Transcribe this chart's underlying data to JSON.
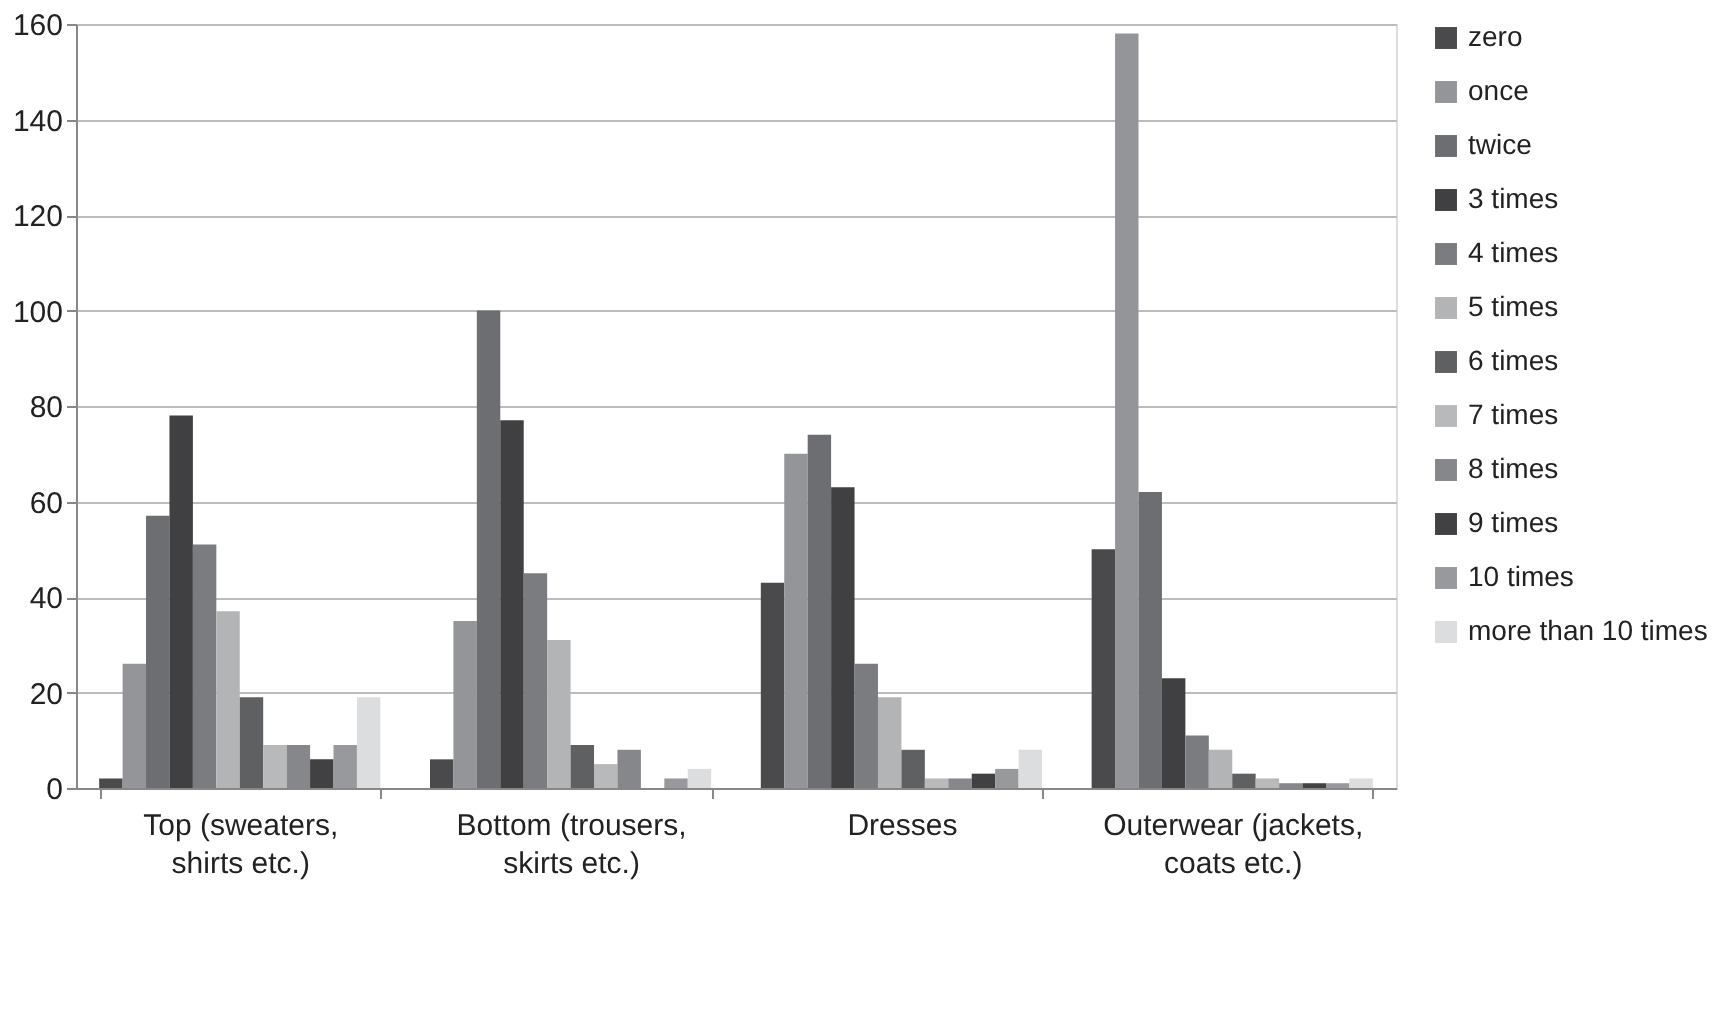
{
  "chart_data": {
    "type": "bar",
    "categories": [
      "Top (sweaters, shirts etc.)",
      "Bottom (trousers, skirts etc.)",
      "Dresses",
      "Outerwear (jackets, coats etc.)"
    ],
    "series": [
      {
        "name": "zero",
        "color": "#4a4a4c",
        "values": [
          2,
          6,
          43,
          50
        ]
      },
      {
        "name": "once",
        "color": "#939598",
        "values": [
          26,
          35,
          70,
          158
        ]
      },
      {
        "name": "twice",
        "color": "#6d6e71",
        "values": [
          57,
          100,
          74,
          62
        ]
      },
      {
        "name": "3 times",
        "color": "#404042",
        "values": [
          78,
          77,
          63,
          23
        ]
      },
      {
        "name": "4 times",
        "color": "#7b7c7f",
        "values": [
          51,
          45,
          26,
          11
        ]
      },
      {
        "name": "5 times",
        "color": "#b3b4b6",
        "values": [
          37,
          31,
          19,
          8
        ]
      },
      {
        "name": "6 times",
        "color": "#5f6062",
        "values": [
          19,
          9,
          8,
          3
        ]
      },
      {
        "name": "7 times",
        "color": "#b8b9bb",
        "values": [
          9,
          5,
          2,
          2
        ]
      },
      {
        "name": "8 times",
        "color": "#86878a",
        "values": [
          9,
          8,
          2,
          1
        ]
      },
      {
        "name": "9 times",
        "color": "#414143",
        "values": [
          6,
          0,
          3,
          1
        ]
      },
      {
        "name": "10 times",
        "color": "#98999c",
        "values": [
          9,
          2,
          4,
          1
        ]
      },
      {
        "name": "more than 10 times",
        "color": "#dcdddf",
        "values": [
          19,
          4,
          8,
          2
        ]
      }
    ],
    "ylim": [
      0,
      160
    ],
    "yticks": [
      0,
      20,
      40,
      60,
      80,
      100,
      120,
      140,
      160
    ],
    "grid": "y",
    "legend": "right"
  }
}
